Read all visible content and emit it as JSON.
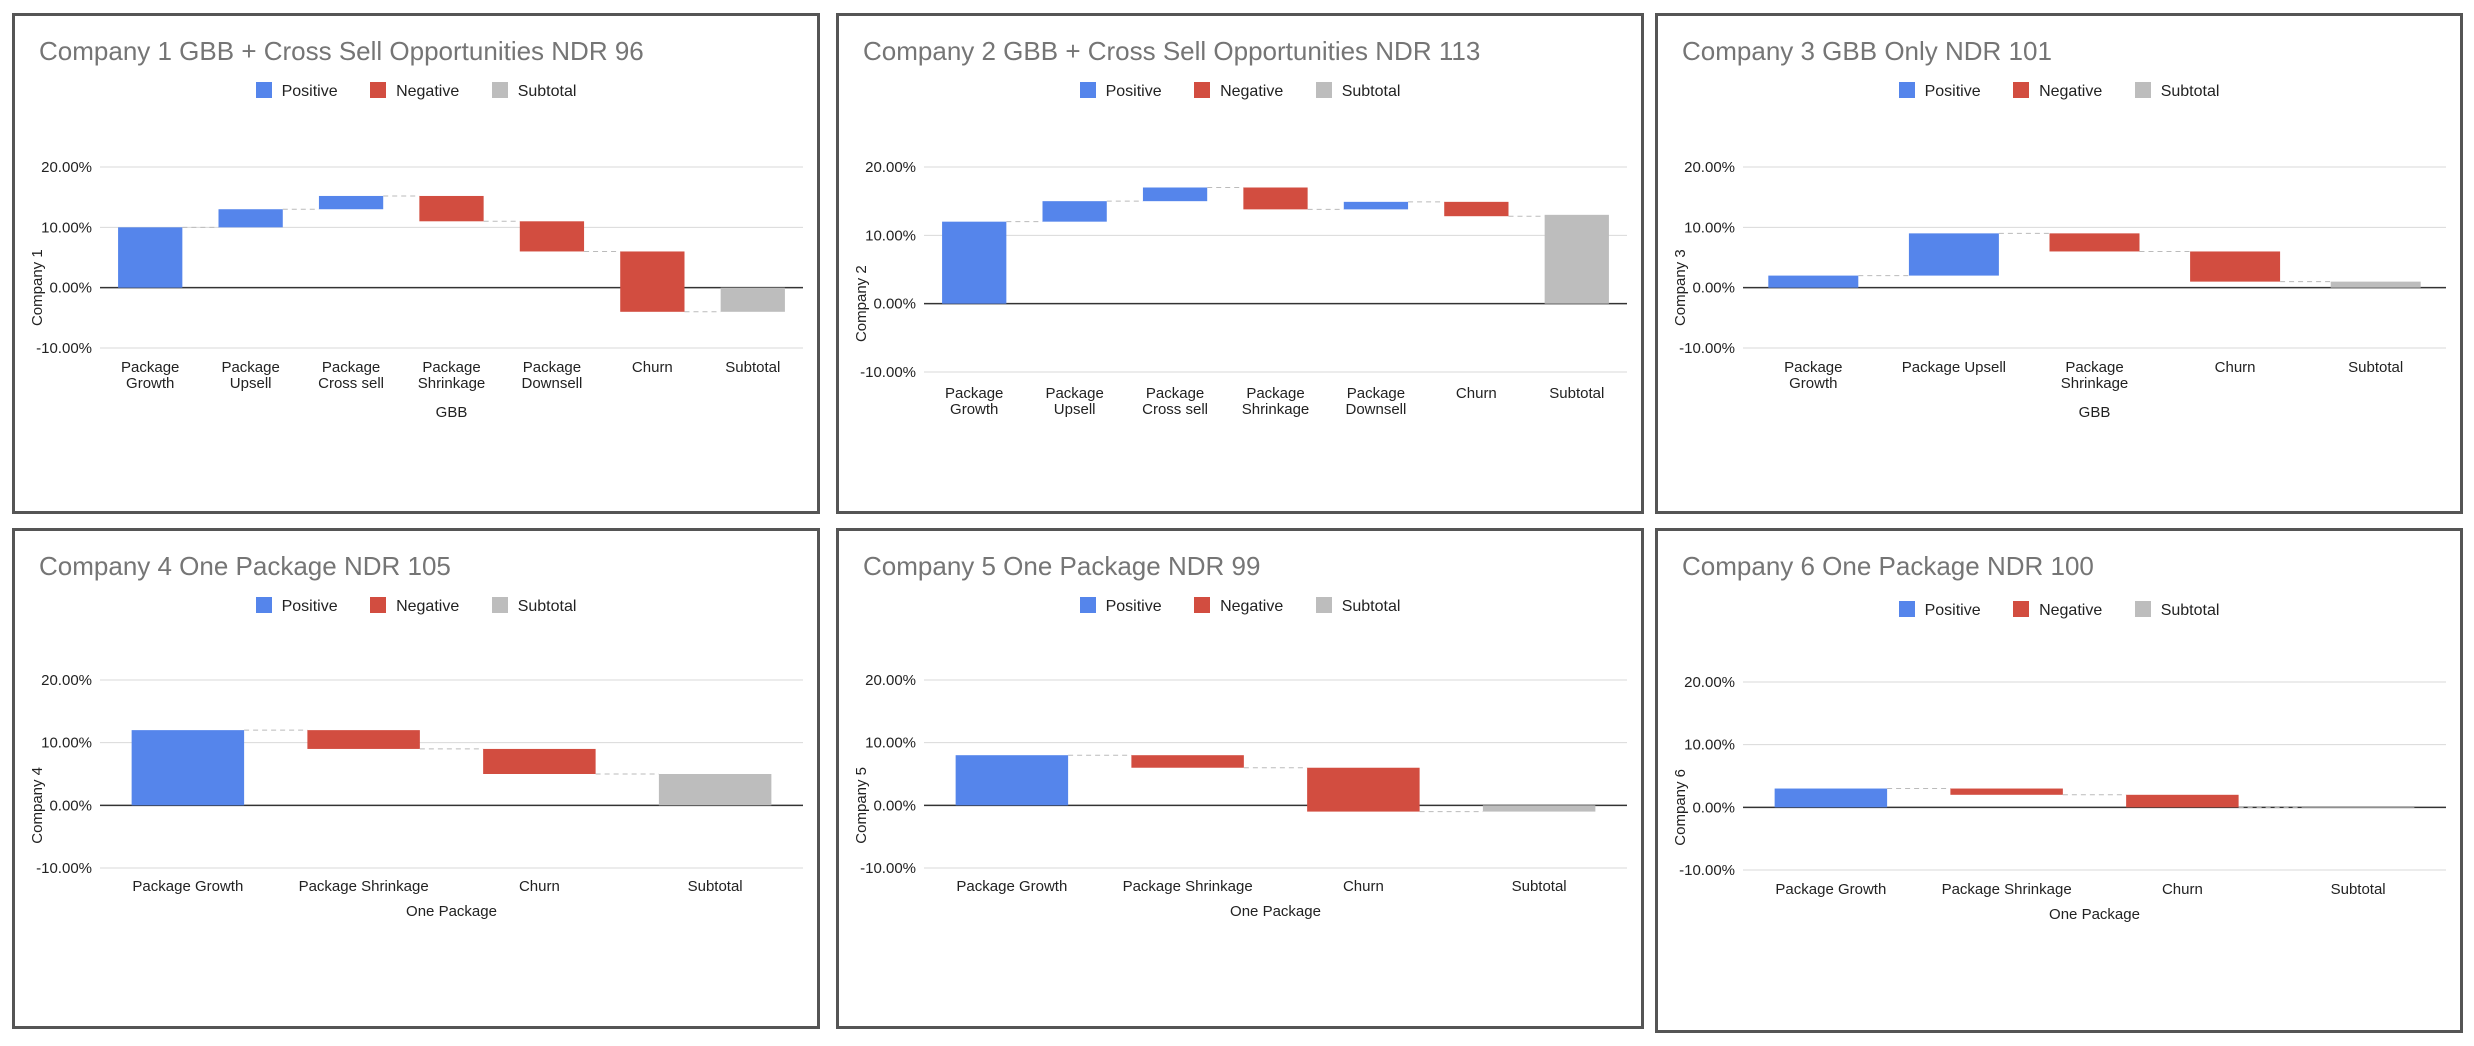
{
  "legend": {
    "positive": "Positive",
    "negative": "Negative",
    "subtotal": "Subtotal"
  },
  "colors": {
    "positive": "#5585eb",
    "negative": "#d24d40",
    "subtotal": "#bdbdbd",
    "title": "#757575",
    "grid": "#d9d9d9",
    "axis": "#333333"
  },
  "chart_data": [
    {
      "type": "waterfall",
      "title": "Company 1 GBB + Cross Sell Opportunities NDR 96",
      "xlabel": "GBB",
      "ylabel": "Company 1",
      "ylim": [
        -0.1,
        0.2
      ],
      "yticks": [
        {
          "v": 0.2,
          "label": "20.00%"
        },
        {
          "v": 0.1,
          "label": "10.00%"
        },
        {
          "v": 0.0,
          "label": "0.00%"
        },
        {
          "v": -0.1,
          "label": "-10.00%"
        }
      ],
      "categories": [
        "Package\nGrowth",
        "Package\nUpsell",
        "Package\nCross sell",
        "Package\nShrinkage",
        "Package\nDownsell",
        "Churn",
        "Subtotal"
      ],
      "values": [
        0.1,
        0.03,
        0.022,
        -0.042,
        -0.05,
        -0.1,
        -0.04
      ],
      "kinds": [
        "positive",
        "positive",
        "positive",
        "negative",
        "negative",
        "negative",
        "subtotal"
      ]
    },
    {
      "type": "waterfall",
      "title": "Company 2 GBB + Cross Sell Opportunities NDR 113",
      "xlabel": "",
      "ylabel": "Company 2",
      "ylim": [
        -0.1,
        0.2
      ],
      "yticks": [
        {
          "v": 0.2,
          "label": "20.00%"
        },
        {
          "v": 0.1,
          "label": "10.00%"
        },
        {
          "v": 0.0,
          "label": "0.00%"
        },
        {
          "v": -0.1,
          "label": "-10.00%"
        }
      ],
      "categories": [
        "Package\nGrowth",
        "Package\nUpsell",
        "Package\nCross sell",
        "Package\nShrinkage",
        "Package\nDownsell",
        "Churn",
        "Subtotal"
      ],
      "values": [
        0.12,
        0.03,
        0.02,
        -0.032,
        0.011,
        -0.021,
        0.13
      ],
      "kinds": [
        "positive",
        "positive",
        "positive",
        "negative",
        "positive",
        "negative",
        "subtotal"
      ]
    },
    {
      "type": "waterfall",
      "title": "Company 3 GBB Only NDR 101",
      "xlabel": "GBB",
      "ylabel": "Company 3",
      "ylim": [
        -0.1,
        0.2
      ],
      "yticks": [
        {
          "v": 0.2,
          "label": "20.00%"
        },
        {
          "v": 0.1,
          "label": "10.00%"
        },
        {
          "v": 0.0,
          "label": "0.00%"
        },
        {
          "v": -0.1,
          "label": "-10.00%"
        }
      ],
      "categories": [
        "Package\nGrowth",
        "Package Upsell",
        "Package\nShrinkage",
        "Churn",
        "Subtotal"
      ],
      "values": [
        0.02,
        0.07,
        -0.03,
        -0.05,
        0.01
      ],
      "kinds": [
        "positive",
        "positive",
        "negative",
        "negative",
        "subtotal"
      ]
    },
    {
      "type": "waterfall",
      "title": "Company 4 One Package NDR 105",
      "xlabel": "One Package",
      "ylabel": "Company 4",
      "ylim": [
        -0.1,
        0.2
      ],
      "yticks": [
        {
          "v": 0.2,
          "label": "20.00%"
        },
        {
          "v": 0.1,
          "label": "10.00%"
        },
        {
          "v": 0.0,
          "label": "0.00%"
        },
        {
          "v": -0.1,
          "label": "-10.00%"
        }
      ],
      "categories": [
        "Package Growth",
        "Package Shrinkage",
        "Churn",
        "Subtotal"
      ],
      "values": [
        0.12,
        -0.03,
        -0.04,
        0.05
      ],
      "kinds": [
        "positive",
        "negative",
        "negative",
        "subtotal"
      ]
    },
    {
      "type": "waterfall",
      "title": "Company 5 One Package NDR 99",
      "xlabel": "One Package",
      "ylabel": "Company 5",
      "ylim": [
        -0.1,
        0.2
      ],
      "yticks": [
        {
          "v": 0.2,
          "label": "20.00%"
        },
        {
          "v": 0.1,
          "label": "10.00%"
        },
        {
          "v": 0.0,
          "label": "0.00%"
        },
        {
          "v": -0.1,
          "label": "-10.00%"
        }
      ],
      "categories": [
        "Package Growth",
        "Package Shrinkage",
        "Churn",
        "Subtotal"
      ],
      "values": [
        0.08,
        -0.02,
        -0.07,
        -0.01
      ],
      "kinds": [
        "positive",
        "negative",
        "negative",
        "subtotal"
      ]
    },
    {
      "type": "waterfall",
      "title": "Company 6 One Package NDR 100",
      "xlabel": "One Package",
      "ylabel": "Company 6",
      "ylim": [
        -0.1,
        0.2
      ],
      "yticks": [
        {
          "v": 0.2,
          "label": "20.00%"
        },
        {
          "v": 0.1,
          "label": "10.00%"
        },
        {
          "v": 0.0,
          "label": "0.00%"
        },
        {
          "v": -0.1,
          "label": "-10.00%"
        }
      ],
      "categories": [
        "Package Growth",
        "Package Shrinkage",
        "Churn",
        "Subtotal"
      ],
      "values": [
        0.03,
        -0.01,
        -0.02,
        0.0
      ],
      "kinds": [
        "positive",
        "negative",
        "negative",
        "subtotal"
      ]
    }
  ]
}
